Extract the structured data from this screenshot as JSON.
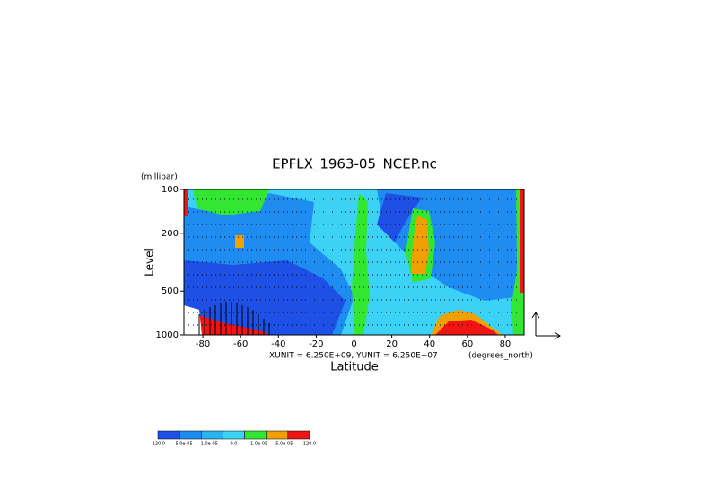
{
  "chart_data": {
    "type": "contour",
    "title": "EPFLX_1963-05_NCEP.nc",
    "y_unit": "(millibar)",
    "y_label": "Level",
    "x_label": "Latitude",
    "x_unit": "(degrees_north)",
    "vector_scale": "XUNIT = 6.250E+09, YUNIT = 6.250E+07",
    "xlim": [
      -90,
      90
    ],
    "xticks": [
      -80,
      -60,
      -40,
      -20,
      0,
      20,
      40,
      60,
      80
    ],
    "ylim": [
      1000,
      100
    ],
    "yticks": [
      100,
      200,
      500,
      1000
    ],
    "y_scale": "log",
    "colorbar": {
      "colors": [
        "#1e50e6",
        "#1e8cf0",
        "#28b4f0",
        "#3cd2f5",
        "#32e632",
        "#f0a000",
        "#f01414"
      ],
      "levels": [
        {
          "value": -120,
          "label": "-120.0"
        },
        {
          "value": -5e-05,
          "label": "-5.0e-05"
        },
        {
          "value": -1e-05,
          "label": "-1.0e-05"
        },
        {
          "value": 0,
          "label": "0.0"
        },
        {
          "value": 1e-05,
          "label": "1.0e-05"
        },
        {
          "value": 5e-05,
          "label": "5.0e-05"
        },
        {
          "value": 120,
          "label": "120.0"
        }
      ]
    }
  }
}
